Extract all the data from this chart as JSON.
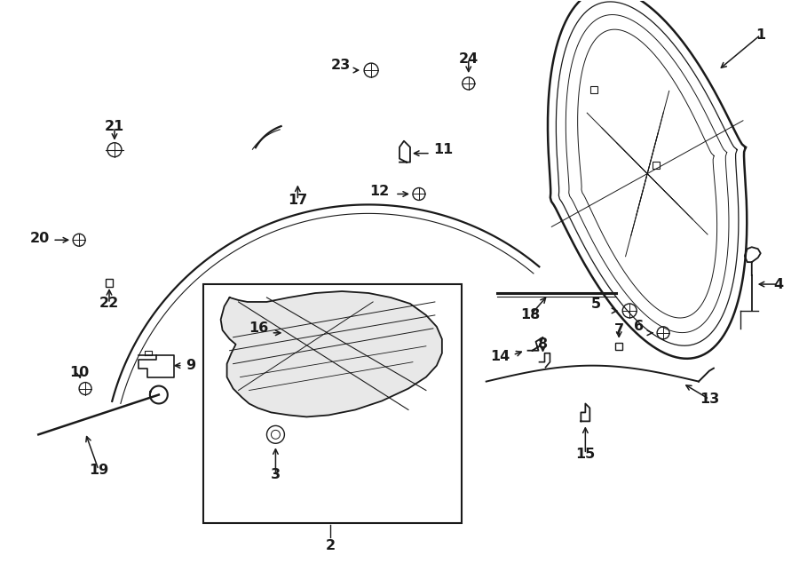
{
  "bg_color": "#ffffff",
  "line_color": "#1a1a1a",
  "label_color": "#1a1a1a",
  "label_fontsize": 11.5,
  "figsize": [
    9.0,
    6.61
  ],
  "dpi": 100
}
